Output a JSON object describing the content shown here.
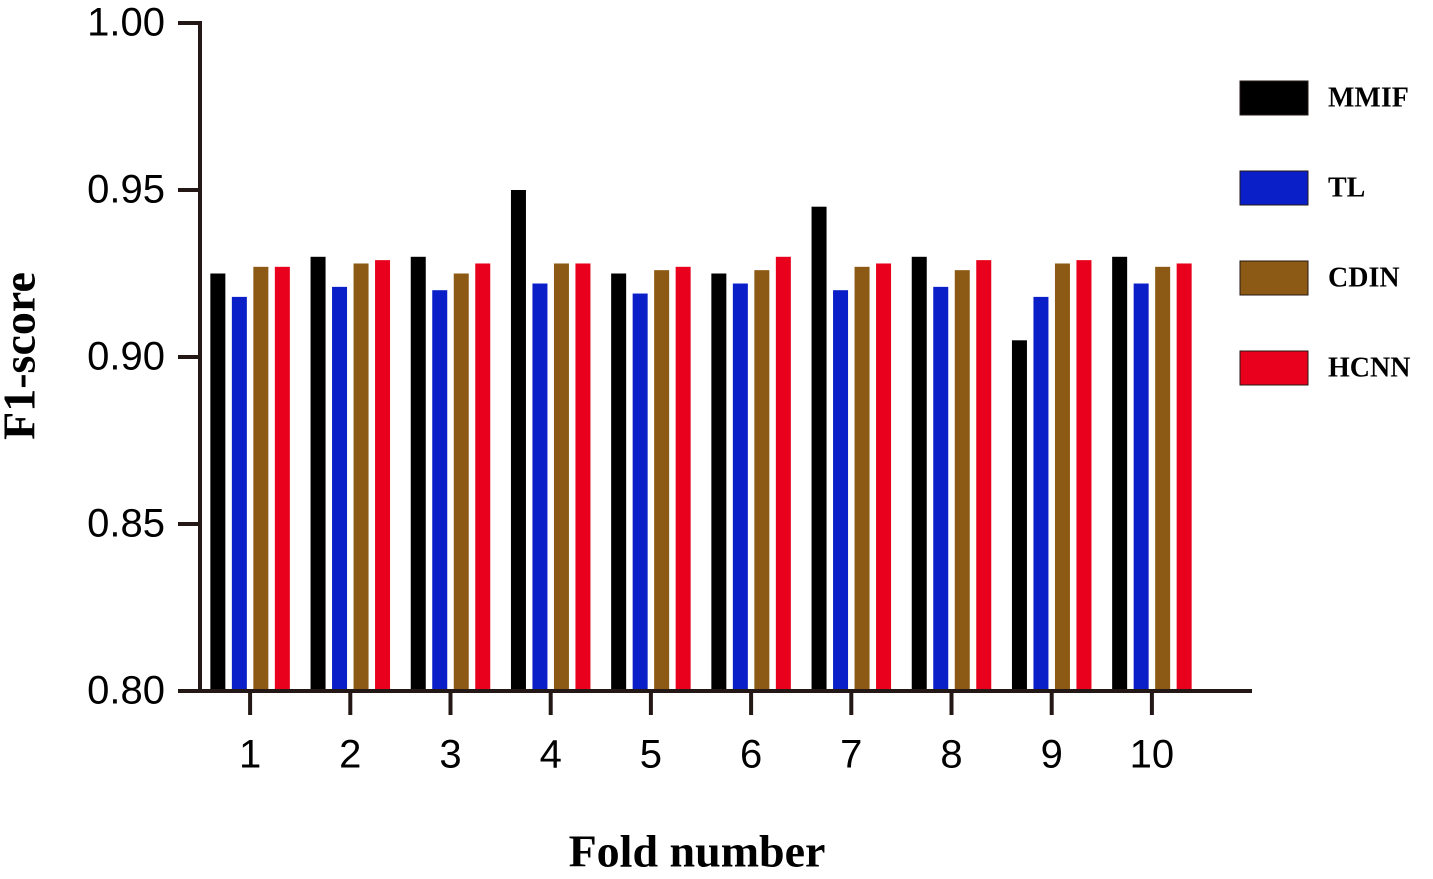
{
  "chart_data": {
    "type": "bar",
    "x_label": "Fold number",
    "y_label": "F1-score",
    "categories": [
      "1",
      "2",
      "3",
      "4",
      "5",
      "6",
      "7",
      "8",
      "9",
      "10"
    ],
    "series": [
      {
        "name": "MMIF",
        "color": "#000000",
        "values": [
          0.925,
          0.93,
          0.93,
          0.95,
          0.925,
          0.925,
          0.945,
          0.93,
          0.905,
          0.93
        ]
      },
      {
        "name": "TL",
        "color": "#0a1fc8",
        "values": [
          0.918,
          0.921,
          0.92,
          0.922,
          0.919,
          0.922,
          0.92,
          0.921,
          0.918,
          0.922
        ]
      },
      {
        "name": "CDIN",
        "color": "#8c5a14",
        "values": [
          0.927,
          0.928,
          0.925,
          0.928,
          0.926,
          0.926,
          0.927,
          0.926,
          0.928,
          0.927
        ]
      },
      {
        "name": "HCNN",
        "color": "#e8001c",
        "values": [
          0.927,
          0.929,
          0.928,
          0.928,
          0.927,
          0.93,
          0.928,
          0.929,
          0.929,
          0.928
        ]
      }
    ],
    "ylim": [
      0.8,
      1.0
    ],
    "yticks": [
      {
        "value": 0.8,
        "label": "0.80"
      },
      0.85,
      {
        "value": 0.9,
        "label": "0.90"
      },
      0.95,
      {
        "value": 1.0,
        "label": "1.00"
      }
    ],
    "legend": "right"
  }
}
